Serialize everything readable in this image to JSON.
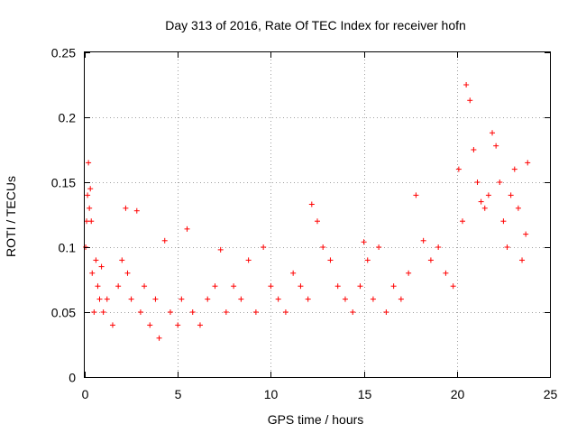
{
  "chart_data": {
    "type": "scatter",
    "title": "Day 313 of 2016, Rate Of TEC Index for receiver hofn",
    "xlabel": "GPS time / hours",
    "ylabel": "ROTI / TECUs",
    "xlim": [
      0,
      25
    ],
    "ylim": [
      0,
      0.25
    ],
    "xticks": [
      0,
      5,
      10,
      15,
      20,
      25
    ],
    "yticks": [
      0,
      0.05,
      0.1,
      0.15,
      0.2,
      0.25
    ],
    "xtick_labels": [
      "0",
      "5",
      "10",
      "15",
      "20",
      "25"
    ],
    "ytick_labels": [
      "0",
      "0.05",
      "0.1",
      "0.15",
      "0.2",
      "0.25"
    ],
    "grid": true,
    "marker": "+",
    "color": "#ff0000",
    "series": [
      {
        "x": [
          0.05,
          0.1,
          0.15,
          0.2,
          0.25,
          0.3,
          0.35,
          0.4,
          0.5,
          0.6,
          0.7,
          0.8,
          0.9,
          1.0,
          1.2,
          1.5,
          1.8,
          2.0,
          2.2,
          2.3,
          2.5,
          2.8,
          3.0,
          3.2,
          3.5,
          3.8,
          4.0,
          4.3,
          4.6,
          5.0,
          5.2,
          5.5,
          5.8,
          6.2,
          6.6,
          7.0,
          7.3,
          7.6,
          8.0,
          8.4,
          8.8,
          9.2,
          9.6,
          10.0,
          10.4,
          10.8,
          11.2,
          11.6,
          12.0,
          12.2,
          12.5,
          12.8,
          13.2,
          13.6,
          14.0,
          14.4,
          14.8,
          15.0,
          15.2,
          15.5,
          15.8,
          16.2,
          16.6,
          17.0,
          17.4,
          17.8,
          18.2,
          18.6,
          19.0,
          19.4,
          19.8,
          20.1,
          20.3,
          20.5,
          20.7,
          20.9,
          21.1,
          21.3,
          21.5,
          21.7,
          21.9,
          22.1,
          22.3,
          22.5,
          22.7,
          22.9,
          23.1,
          23.3,
          23.5,
          23.7,
          23.8
        ],
        "y": [
          0.1,
          0.12,
          0.14,
          0.165,
          0.13,
          0.145,
          0.12,
          0.08,
          0.05,
          0.09,
          0.07,
          0.06,
          0.085,
          0.05,
          0.06,
          0.04,
          0.07,
          0.09,
          0.13,
          0.08,
          0.06,
          0.128,
          0.05,
          0.07,
          0.04,
          0.06,
          0.03,
          0.105,
          0.05,
          0.04,
          0.06,
          0.114,
          0.05,
          0.04,
          0.06,
          0.07,
          0.098,
          0.05,
          0.07,
          0.06,
          0.09,
          0.05,
          0.1,
          0.07,
          0.06,
          0.05,
          0.08,
          0.07,
          0.06,
          0.133,
          0.12,
          0.1,
          0.09,
          0.07,
          0.06,
          0.05,
          0.07,
          0.104,
          0.09,
          0.06,
          0.1,
          0.05,
          0.07,
          0.06,
          0.08,
          0.14,
          0.105,
          0.09,
          0.1,
          0.08,
          0.07,
          0.16,
          0.12,
          0.225,
          0.213,
          0.175,
          0.15,
          0.135,
          0.13,
          0.14,
          0.188,
          0.178,
          0.15,
          0.12,
          0.1,
          0.14,
          0.16,
          0.13,
          0.09,
          0.11,
          0.165
        ]
      }
    ]
  }
}
